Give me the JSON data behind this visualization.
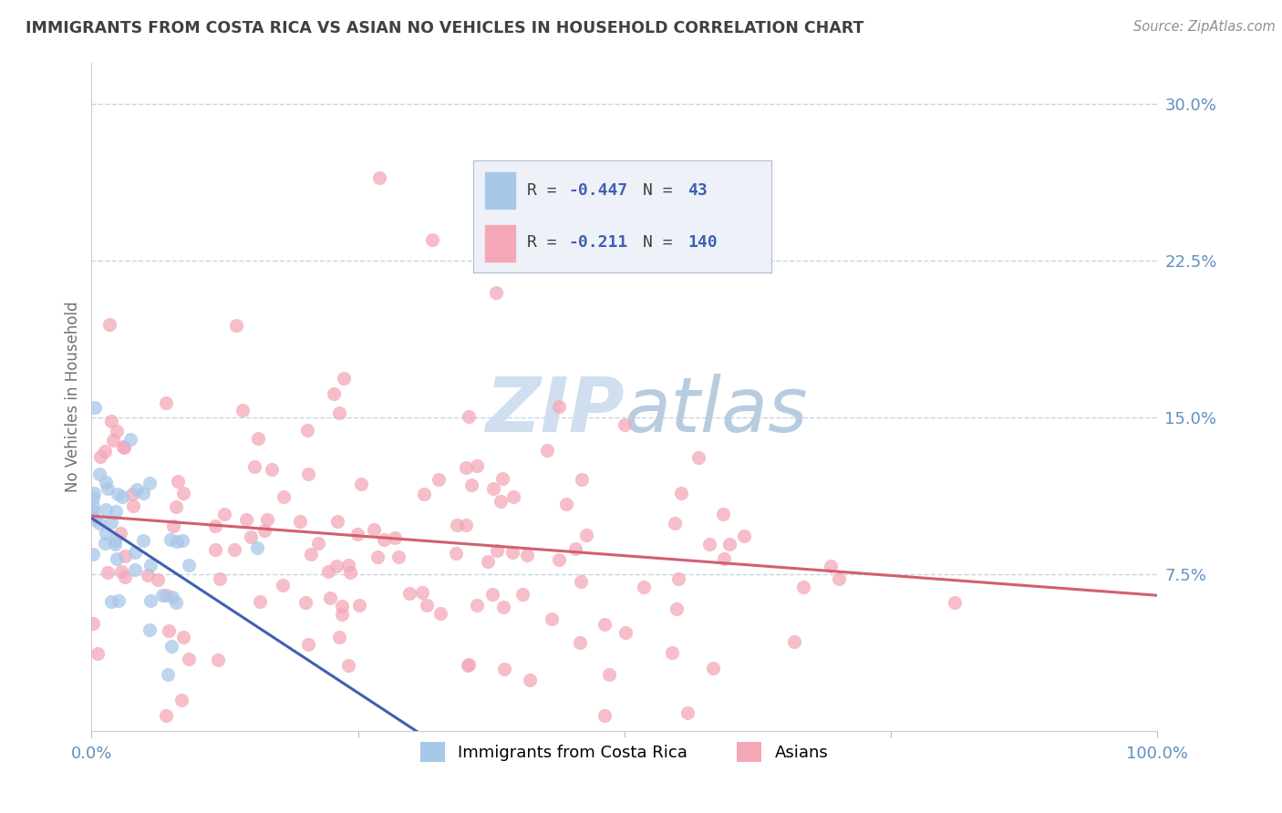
{
  "title": "IMMIGRANTS FROM COSTA RICA VS ASIAN NO VEHICLES IN HOUSEHOLD CORRELATION CHART",
  "source": "Source: ZipAtlas.com",
  "ylabel": "No Vehicles in Household",
  "ytick_values": [
    0.075,
    0.15,
    0.225,
    0.3
  ],
  "ytick_labels": [
    "7.5%",
    "15.0%",
    "22.5%",
    "30.0%"
  ],
  "xlim": [
    0.0,
    1.0
  ],
  "ylim": [
    0.0,
    0.32
  ],
  "blue_color": "#a8c8e8",
  "pink_color": "#f4a8b8",
  "blue_line_color": "#4060b0",
  "pink_line_color": "#d06070",
  "background_color": "#ffffff",
  "grid_color": "#c8d4e4",
  "title_color": "#404040",
  "axis_tick_color": "#6090c0",
  "watermark_color": "#d0dff0",
  "blue_regression": {
    "x_start": 0.0,
    "y_start": 0.102,
    "x_end": 0.32,
    "y_end": -0.005
  },
  "pink_regression": {
    "x_start": 0.0,
    "y_start": 0.103,
    "x_end": 1.0,
    "y_end": 0.065
  }
}
